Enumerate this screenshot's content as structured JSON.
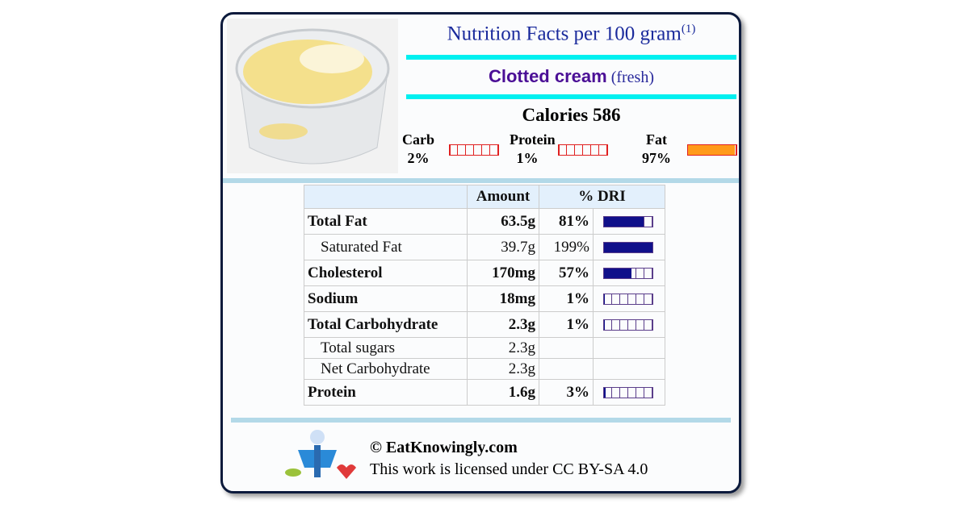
{
  "header": {
    "title": "Nutrition Facts per 100 gram",
    "footnote_mark": "(1)",
    "food_name": "Clotted cream",
    "food_note": "(fresh)"
  },
  "calories": {
    "label": "Calories",
    "value": 586
  },
  "macros": [
    {
      "label": "Carb",
      "pct": {
        "value": 2,
        "label": "2%"
      }
    },
    {
      "label": "Protein",
      "pct": {
        "value": 1,
        "label": "1%"
      }
    },
    {
      "label": "Fat",
      "pct": {
        "value": 97,
        "label": "97%"
      }
    }
  ],
  "table": {
    "columns": [
      "Amount",
      "% DRI"
    ],
    "rows": [
      {
        "name": "Total Fat",
        "amount": "63.5g",
        "dri": {
          "value": 81,
          "label": "81%"
        },
        "bold": true,
        "indent": false
      },
      {
        "name": "Saturated Fat",
        "amount": "39.7g",
        "dri": {
          "value": 199,
          "label": "199%"
        },
        "bold": false,
        "indent": true
      },
      {
        "name": "Cholesterol",
        "amount": "170mg",
        "dri": {
          "value": 57,
          "label": "57%"
        },
        "bold": true,
        "indent": false
      },
      {
        "name": "Sodium",
        "amount": "18mg",
        "dri": {
          "value": 1,
          "label": "1%"
        },
        "bold": true,
        "indent": false
      },
      {
        "name": "Total Carbohydrate",
        "amount": "2.3g",
        "dri": {
          "value": 1,
          "label": "1%"
        },
        "bold": true,
        "indent": false
      },
      {
        "name": "Total sugars",
        "amount": "2.3g",
        "bold": false,
        "indent": true
      },
      {
        "name": "Net Carbohydrate",
        "amount": "2.3g",
        "bold": false,
        "indent": true
      },
      {
        "name": "Protein",
        "amount": "1.6g",
        "dri": {
          "value": 3,
          "label": "3%"
        },
        "bold": true,
        "indent": false
      }
    ]
  },
  "footer": {
    "copyright": "© EatKnowingly.com",
    "license": "This work is licensed under CC BY-SA 4.0"
  }
}
